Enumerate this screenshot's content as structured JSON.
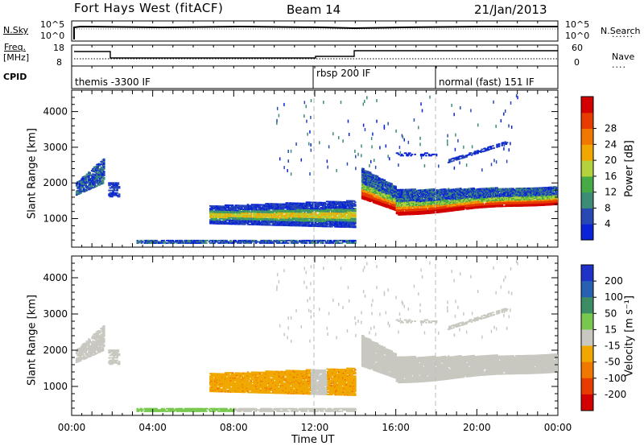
{
  "header": {
    "station": "Fort Hays West (fitACF)",
    "beam": "Beam 14",
    "date": "21/Jan/2013"
  },
  "status_panels": {
    "nsky_label": "N.Sky",
    "nsky_ticks": [
      "10^5",
      "10^0"
    ],
    "nsearch_label": "N.Search",
    "freq_label_1": "Freq.",
    "freq_label_2": "[MHz]",
    "freq_ticks": [
      "18",
      "8"
    ],
    "nave_label": "Nave",
    "nave_ticks": [
      "60",
      "0"
    ],
    "cpid_label": "CPID",
    "cpid_segments": [
      {
        "label": "themis -3300 IF",
        "start": 0.0
      },
      {
        "label": "rbsp 200 IF",
        "start": 12.0
      },
      {
        "label": "normal (fast) 151 IF",
        "start": 18.0
      }
    ]
  },
  "chart_data": [
    {
      "type": "heatmap",
      "name": "power",
      "ylabel": "Slant Range [km]",
      "xlabel": "Time UT",
      "ylim": [
        200,
        4600
      ],
      "xlim": [
        0,
        24
      ],
      "y_ticks": [
        "1000",
        "2000",
        "3000",
        "4000"
      ],
      "x_ticks": [
        "00:00",
        "04:00",
        "08:00",
        "12:00",
        "16:00",
        "20:00",
        "00:00"
      ],
      "colorbar_label": "Power [dB]",
      "colorbar_ticks": [
        "4",
        "8",
        "12",
        "16",
        "20",
        "24",
        "28"
      ],
      "colorbar_colors": [
        "#0a23d7",
        "#2848b4",
        "#3c8c78",
        "#46aa46",
        "#b4d23c",
        "#f0a800",
        "#f07800",
        "#e63c00",
        "#d20000"
      ]
    },
    {
      "type": "heatmap",
      "name": "velocity",
      "ylabel": "Slant Range [km]",
      "xlabel": "Time UT",
      "ylim": [
        200,
        4600
      ],
      "xlim": [
        0,
        24
      ],
      "y_ticks": [
        "1000",
        "2000",
        "3000",
        "4000"
      ],
      "x_ticks": [
        "00:00",
        "04:00",
        "08:00",
        "12:00",
        "16:00",
        "20:00",
        "00:00"
      ],
      "colorbar_label": "Velocity [m s⁻¹]",
      "colorbar_ticks": [
        "200",
        "100",
        "50",
        "15",
        "-15",
        "-50",
        "-100",
        "-200"
      ],
      "colorbar_colors": [
        "#1e32c8",
        "#2860b4",
        "#3c8c64",
        "#78c850",
        "#c8c8c0",
        "#f0a800",
        "#f07800",
        "#e63c00",
        "#d20000"
      ]
    }
  ],
  "xaxis": {
    "title": "Time UT",
    "ticks": [
      "00:00",
      "04:00",
      "08:00",
      "12:00",
      "16:00",
      "20:00",
      "00:00"
    ]
  }
}
